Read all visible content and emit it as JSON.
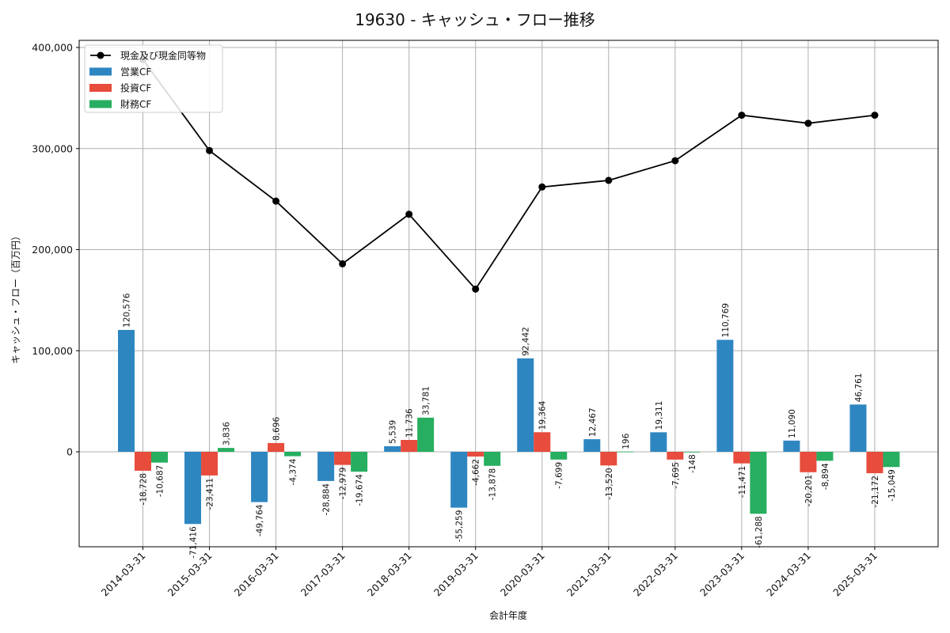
{
  "chart_data": {
    "type": "bar",
    "title": "19630 - キャッシュ・フロー推移",
    "xlabel": "会計年度",
    "ylabel": "キャッシュ・フロー（百万円）",
    "ylim": [
      -95000,
      408000
    ],
    "yticks": [
      0,
      100000,
      200000,
      300000,
      400000
    ],
    "ytick_labels": [
      "0",
      "100,000",
      "200,000",
      "300,000",
      "400,000"
    ],
    "grid": true,
    "legend_position": "top-left",
    "categories": [
      "2014-03-31",
      "2015-03-31",
      "2016-03-31",
      "2017-03-31",
      "2018-03-31",
      "2019-03-31",
      "2020-03-31",
      "2021-03-31",
      "2022-03-31",
      "2023-03-31",
      "2024-03-31",
      "2025-03-31"
    ],
    "series": [
      {
        "name": "営業CF",
        "kind": "bar",
        "color": "#2e86c1",
        "values": [
          120576,
          -71416,
          -49764,
          -28884,
          5539,
          -55259,
          92442,
          12467,
          19311,
          110769,
          11090,
          46761
        ],
        "labels": [
          "120,576",
          "-71,416",
          "-49,764",
          "-28,884",
          "5,539",
          "-55,259",
          "92,442",
          "12,467",
          "19,311",
          "110,769",
          "11,090",
          "46,761"
        ]
      },
      {
        "name": "投資CF",
        "kind": "bar",
        "color": "#e74c3c",
        "values": [
          -18728,
          -23411,
          8696,
          -12979,
          11736,
          -4662,
          19364,
          -13520,
          -7695,
          -11471,
          -20201,
          -21172
        ],
        "labels": [
          "-18,728",
          "-23,411",
          "8,696",
          "-12,979",
          "11,736",
          "-4,662",
          "19,364",
          "-13,520",
          "-7,695",
          "-11,471",
          "-20,201",
          "-21,172"
        ]
      },
      {
        "name": "財務CF",
        "kind": "bar",
        "color": "#27ae60",
        "values": [
          -10687,
          3836,
          -4374,
          -19674,
          33781,
          -13878,
          -7699,
          196,
          -148,
          -61288,
          -8894,
          -15049
        ],
        "labels": [
          "-10,687",
          "3,836",
          "-4,374",
          "-19,674",
          "33,781",
          "-13,878",
          "-7,699",
          "196",
          "-148",
          "-61,288",
          "-8,894",
          "-15,049"
        ]
      },
      {
        "name": "現金及び現金同等物",
        "kind": "line",
        "color": "#000000",
        "values": [
          388000,
          298000,
          248000,
          186000,
          235000,
          161000,
          262000,
          268500,
          288000,
          333000,
          325000,
          333000
        ]
      }
    ]
  }
}
